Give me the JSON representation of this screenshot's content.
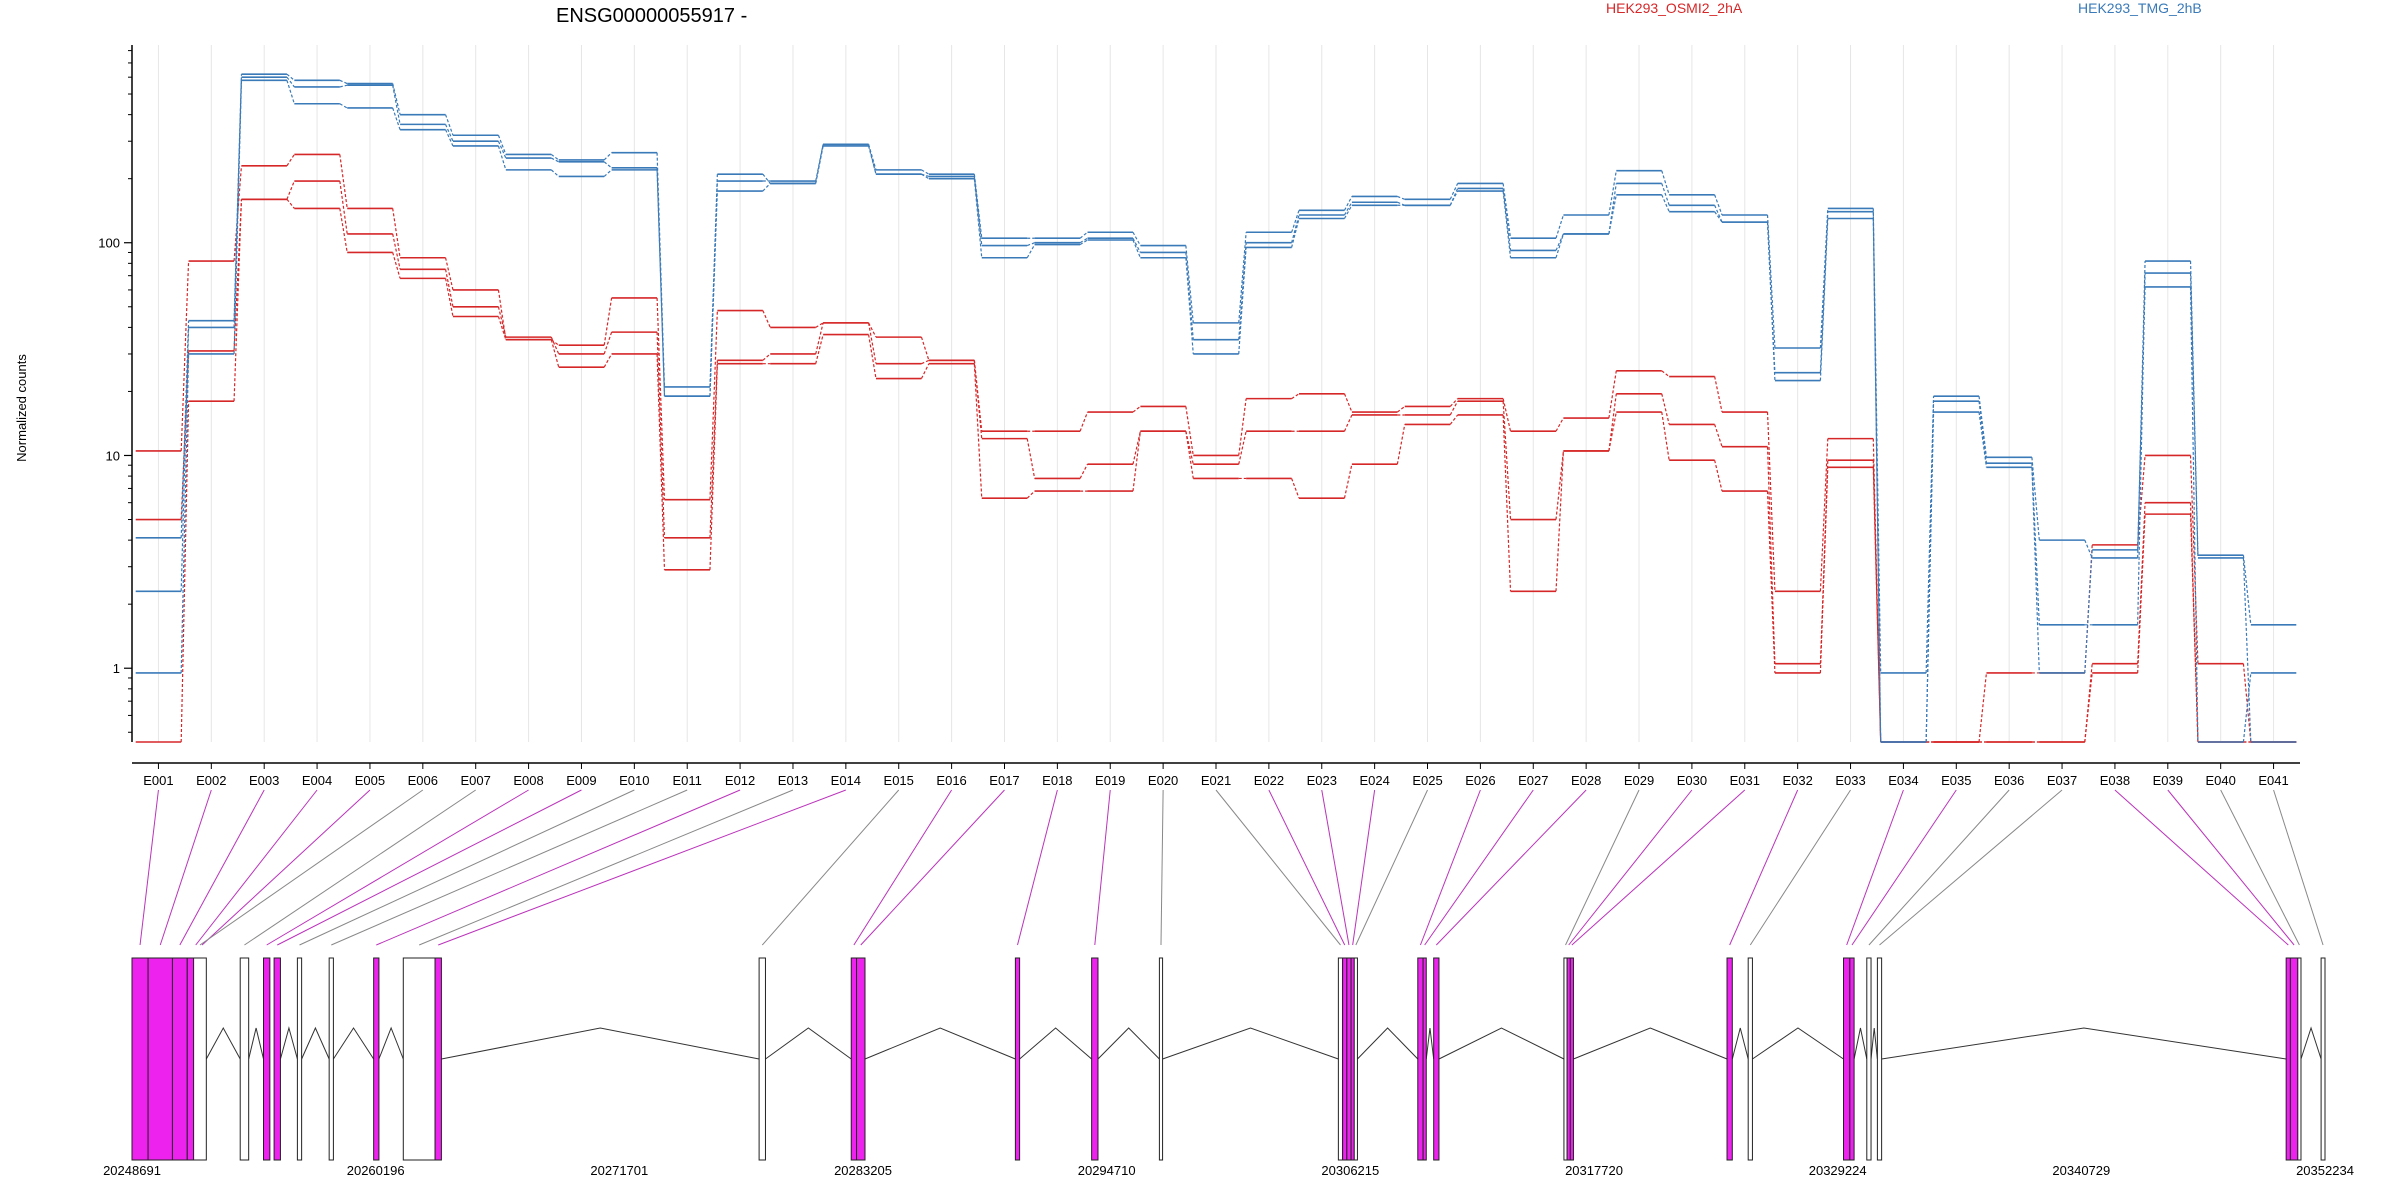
{
  "chart_data": {
    "type": "line",
    "title": "ENSG00000055917 -",
    "ylabel": "Normalized counts",
    "yscale": "log",
    "ylim": [
      0.45,
      850
    ],
    "yticks": [
      {
        "value": 1,
        "label": "1"
      },
      {
        "value": 10,
        "label": "10"
      },
      {
        "value": 100,
        "label": "100"
      }
    ],
    "legend": [
      {
        "label": "HEK293_OSMI2_2hA",
        "color": "#d62728"
      },
      {
        "label": "HEK293_TMG_2hB",
        "color": "#3a7ab8"
      }
    ],
    "legend_position": "top",
    "categories": [
      "E001",
      "E002",
      "E003",
      "E004",
      "E005",
      "E006",
      "E007",
      "E008",
      "E009",
      "E010",
      "E011",
      "E012",
      "E013",
      "E014",
      "E015",
      "E016",
      "E017",
      "E018",
      "E019",
      "E020",
      "E021",
      "E022",
      "E023",
      "E024",
      "E025",
      "E026",
      "E027",
      "E028",
      "E029",
      "E030",
      "E031",
      "E032",
      "E033",
      "E034",
      "E035",
      "E036",
      "E037",
      "E038",
      "E039",
      "E040",
      "E041"
    ],
    "series": [
      {
        "group": "HEK293_OSMI2_2hA",
        "color": "#d62728",
        "values": [
          10.5,
          82,
          230,
          260,
          145,
          85,
          60,
          35,
          33,
          55,
          6.2,
          48,
          40,
          42,
          36,
          28,
          13,
          13,
          16,
          17,
          10,
          18.5,
          19.5,
          16,
          17,
          18.5,
          13,
          15,
          25,
          23.5,
          16,
          2.3,
          12,
          0.45,
          0.45,
          0.95,
          0.95,
          3.8,
          10,
          1.05,
          0.45
        ]
      },
      {
        "group": "HEK293_OSMI2_2hA",
        "color": "#d62728",
        "values": [
          5,
          31,
          160,
          195,
          110,
          75,
          50,
          36,
          30,
          38,
          4.1,
          28,
          30,
          42,
          27,
          28,
          12,
          7.8,
          9.1,
          13,
          9.1,
          13,
          13,
          15.5,
          15.5,
          18,
          5,
          10.5,
          19.5,
          14,
          11,
          1.05,
          9.5,
          0.45,
          0.45,
          0.45,
          0.45,
          1.05,
          6,
          0.45,
          0.45
        ]
      },
      {
        "group": "HEK293_OSMI2_2hA",
        "color": "#d62728",
        "values": [
          0.45,
          18,
          160,
          145,
          90,
          68,
          45,
          35,
          26,
          30,
          2.9,
          27,
          27,
          37,
          23,
          27,
          6.3,
          6.8,
          6.8,
          13,
          7.8,
          7.8,
          6.3,
          9.1,
          14,
          15.5,
          2.3,
          10.5,
          16,
          9.5,
          6.8,
          0.95,
          8.8,
          0.45,
          0.45,
          0.45,
          0.45,
          0.95,
          5.3,
          0.45,
          0.45
        ]
      },
      {
        "group": "HEK293_TMG_2hB",
        "color": "#3a7ab8",
        "values": [
          4.1,
          43,
          620,
          580,
          560,
          400,
          320,
          260,
          245,
          265,
          21,
          210,
          190,
          290,
          220,
          210,
          105,
          105,
          112,
          97,
          42,
          112,
          142,
          165,
          160,
          190,
          105,
          135,
          218,
          168,
          135,
          32,
          145,
          0.95,
          19,
          9.8,
          4,
          3.3,
          82,
          3.4,
          1.6
        ]
      },
      {
        "group": "HEK293_TMG_2hB",
        "color": "#3a7ab8",
        "values": [
          2.3,
          40,
          600,
          540,
          550,
          360,
          300,
          250,
          240,
          225,
          19,
          195,
          195,
          290,
          210,
          205,
          97,
          100,
          105,
          90,
          35,
          100,
          135,
          155,
          150,
          180,
          92,
          110,
          190,
          150,
          125,
          24.5,
          140,
          0.45,
          18,
          9.2,
          1.6,
          1.6,
          72,
          3.3,
          0.45
        ]
      },
      {
        "group": "HEK293_TMG_2hB",
        "color": "#3a7ab8",
        "values": [
          0.95,
          30,
          580,
          450,
          430,
          340,
          285,
          220,
          205,
          220,
          19,
          175,
          190,
          285,
          210,
          200,
          85,
          98,
          103,
          85,
          30,
          95,
          130,
          150,
          150,
          175,
          85,
          110,
          168,
          140,
          125,
          22.5,
          130,
          0.45,
          16,
          8.8,
          0.95,
          3.6,
          62,
          0.45,
          0.95
        ]
      }
    ],
    "gene_model": {
      "coord_labels": [
        "20248691",
        "20260196",
        "20271701",
        "20283205",
        "20294710",
        "20306215",
        "20317720",
        "20329224",
        "20340729",
        "20352234"
      ],
      "coord_range": [
        20248691,
        20352234
      ],
      "exon_colors": {
        "significant": "#ee22ee",
        "other": "#ffffff"
      },
      "exons": [
        {
          "id": "E001",
          "start": 20248691,
          "end": 20249450,
          "sig": true
        },
        {
          "id": "E002",
          "start": 20249450,
          "end": 20250600,
          "sig": true
        },
        {
          "id": "E003",
          "start": 20250600,
          "end": 20251300,
          "sig": true
        },
        {
          "id": "E004",
          "start": 20251300,
          "end": 20252100,
          "sig": true
        },
        {
          "id": "E005",
          "start": 20252100,
          "end": 20251900,
          "sig": true
        },
        {
          "id": "E006",
          "start": 20252200,
          "end": 20251600,
          "sig": false
        },
        {
          "id": "E007",
          "start": 20253800,
          "end": 20254200,
          "sig": false
        },
        {
          "id": "E008",
          "start": 20254900,
          "end": 20255200,
          "sig": true
        },
        {
          "id": "E009",
          "start": 20255400,
          "end": 20255700,
          "sig": true
        },
        {
          "id": "E010",
          "start": 20256500,
          "end": 20256700,
          "sig": false
        },
        {
          "id": "E011",
          "start": 20258000,
          "end": 20258200,
          "sig": false
        },
        {
          "id": "E012",
          "start": 20260100,
          "end": 20260350,
          "sig": true
        },
        {
          "id": "E013",
          "start": 20261500,
          "end": 20263000,
          "sig": false
        },
        {
          "id": "E014",
          "start": 20263000,
          "end": 20263300,
          "sig": true
        },
        {
          "id": "E015",
          "start": 20278300,
          "end": 20278600,
          "sig": false
        },
        {
          "id": "E016",
          "start": 20282650,
          "end": 20282900,
          "sig": true
        },
        {
          "id": "E017",
          "start": 20282900,
          "end": 20283300,
          "sig": true
        },
        {
          "id": "E018",
          "start": 20290400,
          "end": 20290600,
          "sig": true
        },
        {
          "id": "E019",
          "start": 20294000,
          "end": 20294300,
          "sig": true
        },
        {
          "id": "E020",
          "start": 20297200,
          "end": 20297350,
          "sig": false
        },
        {
          "id": "E021",
          "start": 20305650,
          "end": 20305850,
          "sig": false
        },
        {
          "id": "E022",
          "start": 20305850,
          "end": 20306050,
          "sig": true
        },
        {
          "id": "E023",
          "start": 20306050,
          "end": 20306250,
          "sig": true
        },
        {
          "id": "E024",
          "start": 20306250,
          "end": 20306400,
          "sig": true
        },
        {
          "id": "E025",
          "start": 20306400,
          "end": 20306550,
          "sig": false
        },
        {
          "id": "E026",
          "start": 20309400,
          "end": 20309650,
          "sig": true
        },
        {
          "id": "E027",
          "start": 20309650,
          "end": 20309800,
          "sig": true
        },
        {
          "id": "E028",
          "start": 20310150,
          "end": 20310400,
          "sig": true
        },
        {
          "id": "E029",
          "start": 20316300,
          "end": 20316450,
          "sig": false
        },
        {
          "id": "E030",
          "start": 20316450,
          "end": 20316600,
          "sig": true
        },
        {
          "id": "E031",
          "start": 20316600,
          "end": 20316750,
          "sig": true
        },
        {
          "id": "E032",
          "start": 20324000,
          "end": 20324250,
          "sig": true
        },
        {
          "id": "E033",
          "start": 20325000,
          "end": 20325200,
          "sig": false
        },
        {
          "id": "E034",
          "start": 20329500,
          "end": 20329800,
          "sig": true
        },
        {
          "id": "E035",
          "start": 20329800,
          "end": 20330000,
          "sig": true
        },
        {
          "id": "E036",
          "start": 20330600,
          "end": 20330800,
          "sig": false
        },
        {
          "id": "E037",
          "start": 20331100,
          "end": 20331300,
          "sig": false
        },
        {
          "id": "E038",
          "start": 20350400,
          "end": 20350600,
          "sig": true
        },
        {
          "id": "E039",
          "start": 20350600,
          "end": 20350950,
          "sig": true
        },
        {
          "id": "E040",
          "start": 20350950,
          "end": 20351100,
          "sig": false
        },
        {
          "id": "E041",
          "start": 20352050,
          "end": 20352234,
          "sig": false
        }
      ]
    }
  }
}
